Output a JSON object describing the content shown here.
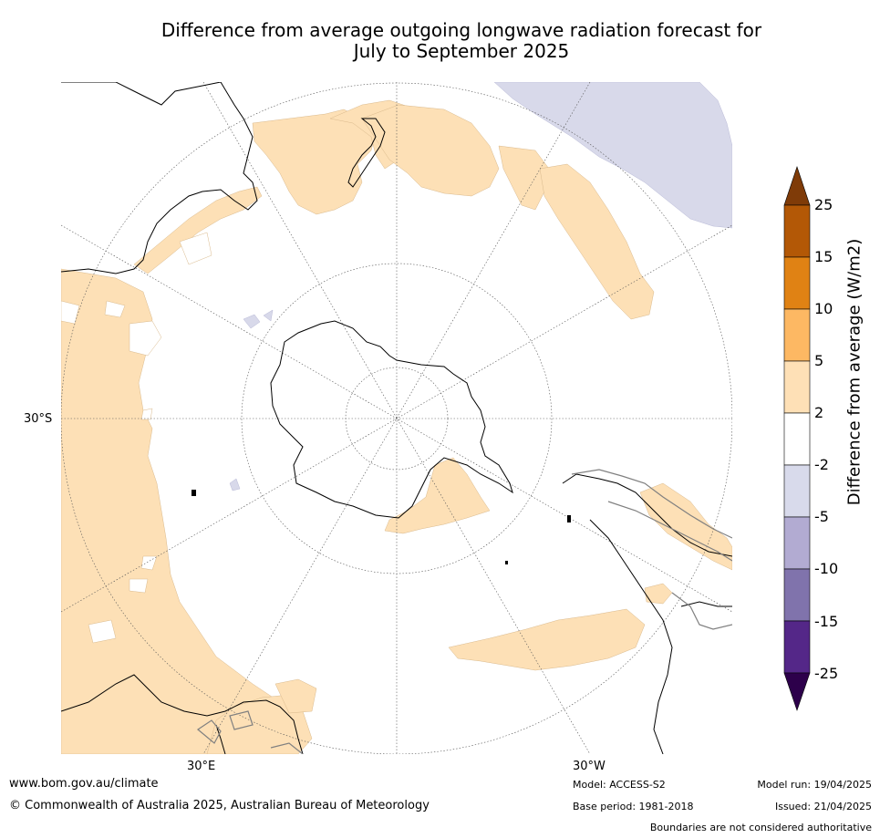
{
  "title": {
    "line1": "Difference from average outgoing longwave radiation forecast for",
    "line2": "July to September 2025"
  },
  "map": {
    "projection": "south-polar stereographic",
    "lat_labels": [
      "30°S"
    ],
    "lon_labels": [
      "30°E",
      "30°W"
    ],
    "colors": {
      "positive_2_5": "#fde0b6",
      "negative_2_5": "#d8d9ea",
      "coast": "#000000",
      "border": "#808080",
      "grid": "#555555"
    }
  },
  "colorbar": {
    "title": "Difference from average (W/m2)",
    "ticks": [
      "25",
      "15",
      "10",
      "5",
      "2",
      "-2",
      "-5",
      "-10",
      "-15",
      "-25"
    ],
    "colors": [
      "#7f3b08",
      "#b35806",
      "#e08214",
      "#fdb863",
      "#fee0b6",
      "#ffffff",
      "#d8daeb",
      "#b2abd2",
      "#8073ac",
      "#542788",
      "#2d004b"
    ]
  },
  "footer": {
    "url": "www.bom.gov.au/climate",
    "copyright": "© Commonwealth of Australia 2025, Australian Bureau of Meteorology",
    "model": "Model: ACCESS-S2",
    "base_period": "Base period: 1981-2018",
    "model_run": "Model run: 19/04/2025",
    "issued": "Issued: 21/04/2025",
    "disclaimer": "Boundaries are not considered authoritative"
  }
}
